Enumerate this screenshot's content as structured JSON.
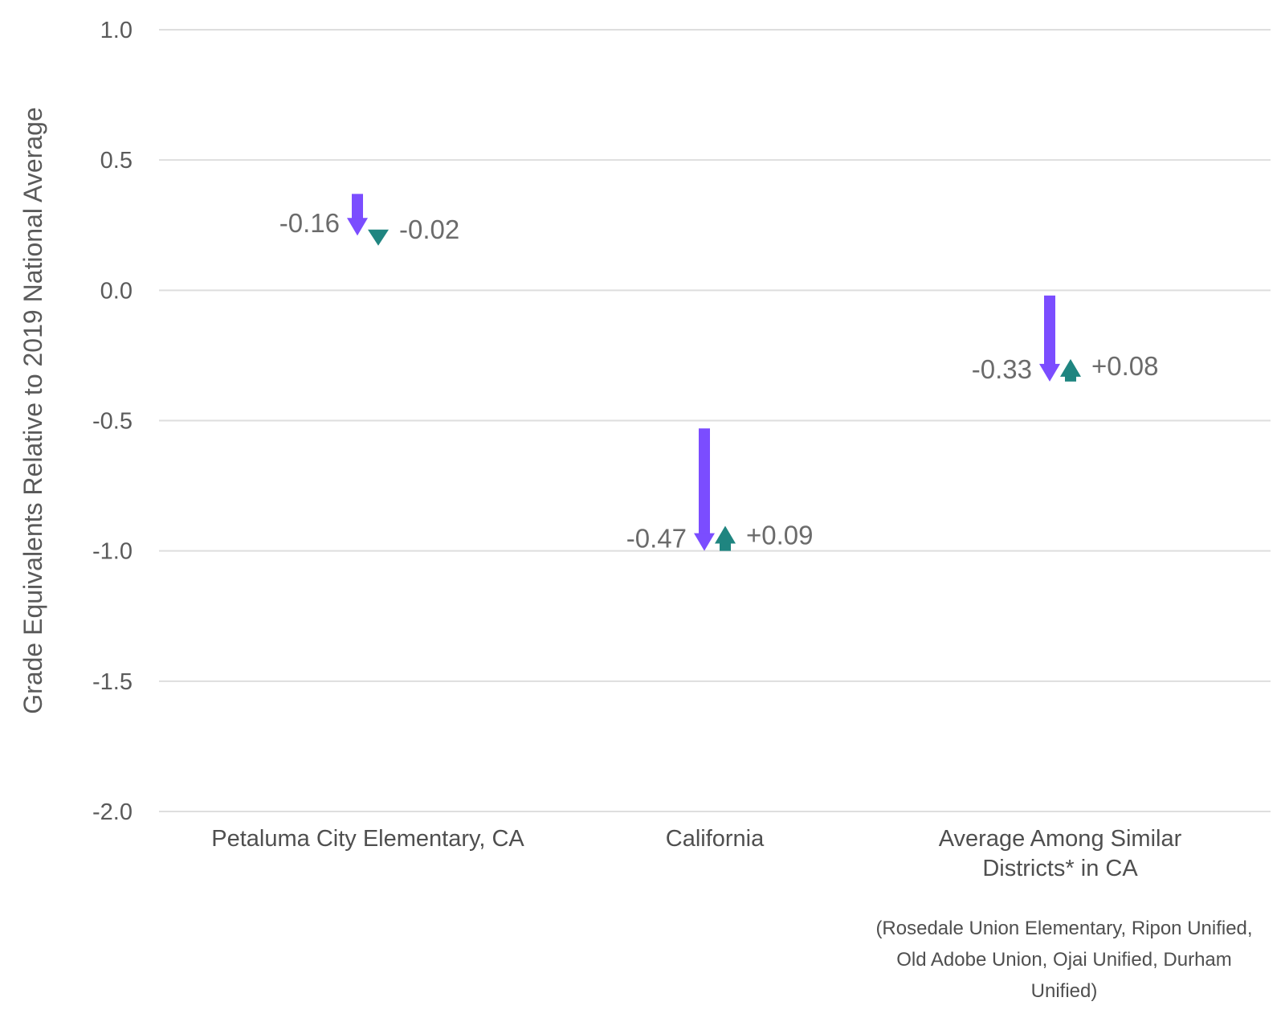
{
  "chart_data": {
    "type": "arrow",
    "ylabel": "Grade Equivalents Relative to 2019 National Average",
    "ylim": [
      -2.0,
      1.0
    ],
    "yticks": [
      1.0,
      0.5,
      0.0,
      -0.5,
      -1.0,
      -1.5,
      -2.0
    ],
    "ytick_labels": [
      "1.0",
      "0.5",
      "0.0",
      "-0.5",
      "-1.0",
      "-1.5",
      "-2.0"
    ],
    "grid": true,
    "colors": {
      "decline": "#7b4dff",
      "change": "#1f8580"
    },
    "categories": [
      {
        "label_lines": [
          "Petaluma City Elementary, CA"
        ],
        "start": 0.37,
        "decline": -0.16,
        "decline_label": "-0.16",
        "change": -0.02,
        "change_label": "-0.02"
      },
      {
        "label_lines": [
          "California"
        ],
        "start": -0.53,
        "decline": -0.47,
        "decline_label": "-0.47",
        "change": 0.09,
        "change_label": "+0.09"
      },
      {
        "label_lines": [
          "Average Among Similar",
          "Districts* in CA"
        ],
        "start": -0.02,
        "decline": -0.33,
        "decline_label": "-0.33",
        "change": 0.08,
        "change_label": "+0.08"
      }
    ],
    "note_lines": [
      "(Rosedale Union Elementary, Ripon Unified,",
      "Old Adobe Union, Ojai Unified, Durham",
      "Unified)"
    ]
  }
}
